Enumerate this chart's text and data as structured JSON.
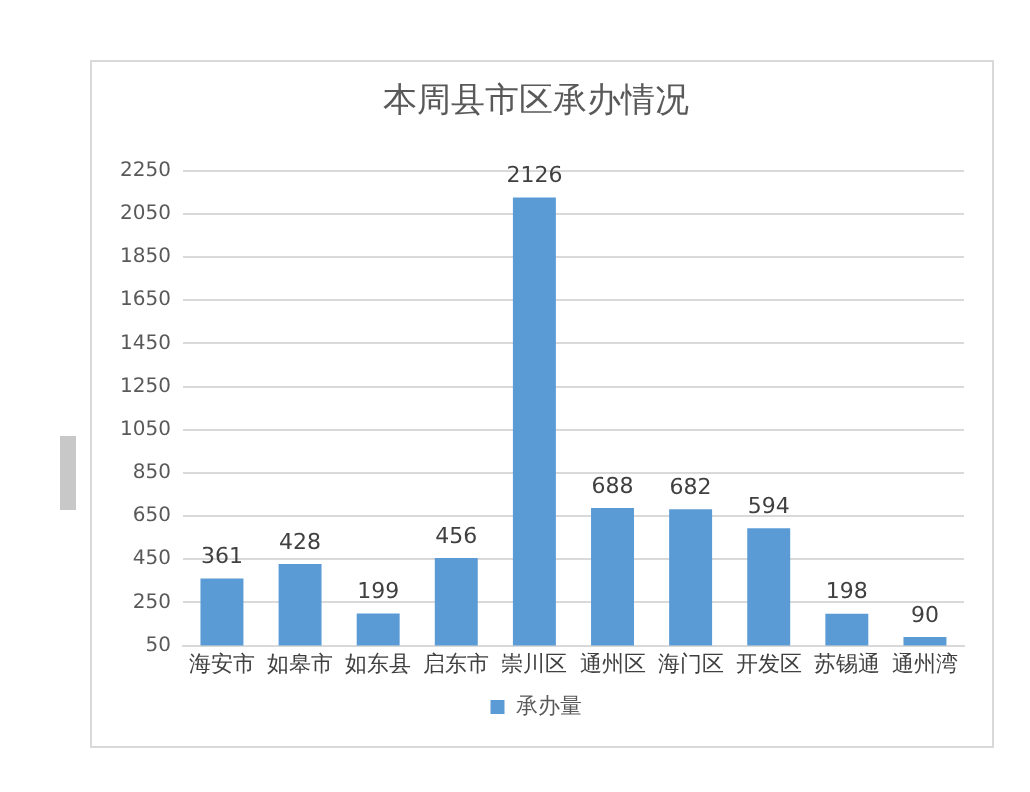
{
  "chart_data": {
    "type": "bar",
    "title": "本周县市区承办情况",
    "categories": [
      "海安市",
      "如皋市",
      "如东县",
      "启东市",
      "崇川区",
      "通州区",
      "海门区",
      "开发区",
      "苏锡通",
      "通州湾"
    ],
    "series": [
      {
        "name": "承办量",
        "color": "#5b9bd5",
        "values": [
          361,
          428,
          199,
          456,
          2126,
          688,
          682,
          594,
          198,
          90
        ]
      }
    ],
    "ylim": [
      50,
      2250
    ],
    "yticks": [
      50,
      250,
      450,
      650,
      850,
      1050,
      1250,
      1450,
      1650,
      1850,
      2050,
      2250
    ],
    "grid": "y",
    "legend": "bottom",
    "data_labels": true
  }
}
